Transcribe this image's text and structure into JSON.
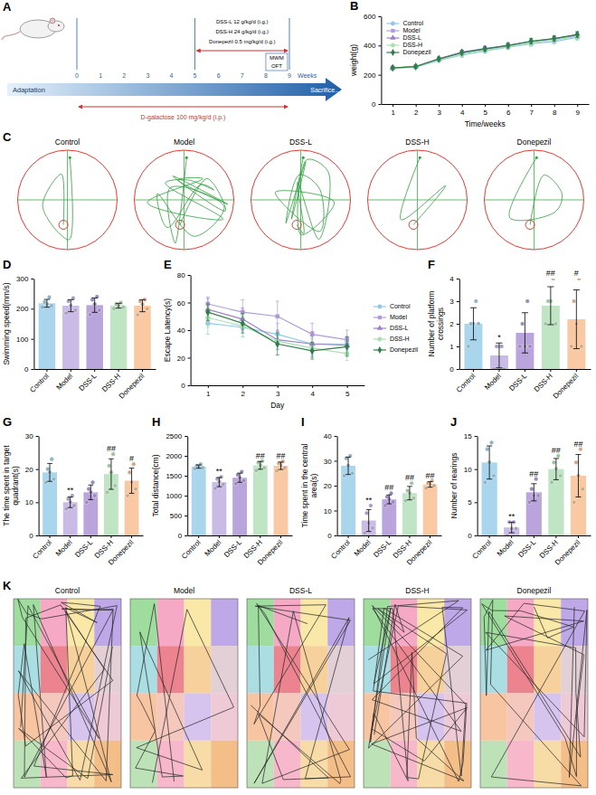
{
  "diagram": {
    "panel": "A",
    "adaptation": "Adaptation",
    "weeks": [
      0,
      1,
      2,
      3,
      4,
      5,
      6,
      7,
      8,
      9
    ],
    "weeks_label": "Weeks",
    "end": "Sacrifice...",
    "treatments": [
      "DSS-L 12 g/kg/d  (i.g.)",
      "DSS-H 24 g/kg/d  (i.g.)",
      "Donepezil 0.5 mg/kg/d  (i.g.)"
    ],
    "tests": [
      "MWM",
      "OFT"
    ],
    "model": "D-galactose 100 mg/kg/d  (i.p.)"
  },
  "chart_data": [
    {
      "panel": "B",
      "type": "line",
      "xlabel": "Time/weeks",
      "ylabel": "weight(g)",
      "x": [
        1,
        2,
        3,
        4,
        5,
        6,
        7,
        8,
        9
      ],
      "xlim": [
        0.5,
        9.5
      ],
      "xticks": [
        1,
        2,
        3,
        4,
        5,
        6,
        7,
        8,
        9
      ],
      "ylim": [
        0,
        600
      ],
      "yticks": [
        0,
        200,
        400,
        600
      ],
      "legend": "upper left",
      "series": [
        {
          "name": "Control",
          "color": "#8fc9e6",
          "marker": "circle",
          "values": [
            245,
            252,
            298,
            335,
            362,
            388,
            412,
            428,
            455
          ],
          "errors": [
            8,
            9,
            12,
            15,
            15,
            16,
            18,
            18,
            20
          ]
        },
        {
          "name": "Model",
          "color": "#b19cd9",
          "marker": "square",
          "values": [
            248,
            255,
            305,
            348,
            375,
            398,
            425,
            443,
            468
          ],
          "errors": [
            8,
            9,
            12,
            15,
            15,
            16,
            18,
            18,
            20
          ]
        },
        {
          "name": "DSS-L",
          "color": "#9b7fc9",
          "marker": "triangle",
          "values": [
            246,
            257,
            310,
            355,
            380,
            402,
            428,
            446,
            472
          ],
          "errors": [
            8,
            9,
            12,
            15,
            15,
            16,
            18,
            18,
            20
          ]
        },
        {
          "name": "DSS-H",
          "color": "#a9dfb3",
          "marker": "circle",
          "values": [
            244,
            254,
            300,
            340,
            368,
            392,
            418,
            438,
            462
          ],
          "errors": [
            8,
            9,
            12,
            15,
            15,
            16,
            18,
            18,
            20
          ]
        },
        {
          "name": "Donepezil",
          "color": "#2f7d4a",
          "marker": "diamond",
          "values": [
            247,
            256,
            308,
            352,
            377,
            400,
            430,
            448,
            475
          ],
          "errors": [
            8,
            9,
            12,
            15,
            15,
            16,
            18,
            18,
            20
          ]
        }
      ]
    },
    {
      "panel": "D",
      "type": "bar",
      "ylabel": "Swimming speed(mm/s)",
      "categories": [
        "Control",
        "Model",
        "DSS-L",
        "DSS-H",
        "Donepezil"
      ],
      "values": [
        218,
        210,
        212,
        210,
        210
      ],
      "errors": [
        13,
        20,
        24,
        8,
        20
      ],
      "points": [
        [
          205,
          210,
          215,
          222,
          238
        ],
        [
          185,
          195,
          210,
          225,
          235
        ],
        [
          180,
          195,
          215,
          230,
          240
        ],
        [
          200,
          205,
          210,
          215,
          220
        ],
        [
          180,
          200,
          215,
          225,
          230
        ]
      ],
      "colors": [
        "#a9d6ec",
        "#c9bbe6",
        "#b9a4dc",
        "#bfe5c4",
        "#f9c9a3"
      ],
      "ylim": [
        0,
        300
      ],
      "yticks": [
        0,
        100,
        200,
        300
      ]
    },
    {
      "panel": "E",
      "type": "line",
      "xlabel": "Day",
      "ylabel": "Escape Latency(s)",
      "x": [
        1,
        2,
        3,
        4,
        5
      ],
      "xlim": [
        0.5,
        5.5
      ],
      "xticks": [
        1,
        2,
        3,
        4,
        5
      ],
      "ylim": [
        0,
        80
      ],
      "yticks": [
        0,
        20,
        40,
        60,
        80
      ],
      "legend": "right",
      "series": [
        {
          "name": "Control",
          "color": "#8fc9e6",
          "marker": "circle",
          "values": [
            45,
            42,
            37,
            30,
            30
          ],
          "errors": [
            8,
            7,
            8,
            7,
            6
          ]
        },
        {
          "name": "Model",
          "color": "#b19cd9",
          "marker": "square",
          "values": [
            59,
            53,
            50,
            37,
            33
          ],
          "errors": [
            5,
            9,
            11,
            8,
            7
          ]
        },
        {
          "name": "DSS-L",
          "color": "#9b7fc9",
          "marker": "triangle",
          "values": [
            55,
            48,
            33,
            30,
            29
          ],
          "errors": [
            8,
            8,
            7,
            9,
            6
          ]
        },
        {
          "name": "DSS-H",
          "color": "#a9dfb3",
          "marker": "circle",
          "values": [
            49,
            43,
            32,
            27,
            23
          ],
          "errors": [
            7,
            8,
            6,
            7,
            5
          ]
        },
        {
          "name": "Donepezil",
          "color": "#2f7d4a",
          "marker": "diamond",
          "values": [
            53,
            45,
            30,
            25,
            28
          ],
          "errors": [
            6,
            7,
            8,
            6,
            7
          ]
        }
      ]
    },
    {
      "panel": "F",
      "type": "bar",
      "ylabel": "Number of platform crossings",
      "categories": [
        "Control",
        "Model",
        "DSS-L",
        "DSS-H",
        "Donepezil"
      ],
      "values": [
        2.0,
        0.6,
        1.6,
        2.8,
        2.2
      ],
      "errors": [
        0.71,
        0.55,
        0.89,
        0.84,
        1.3
      ],
      "points": [
        [
          1,
          2,
          2,
          2,
          3
        ],
        [
          0,
          0,
          1,
          1,
          1
        ],
        [
          1,
          1,
          1,
          2,
          3
        ],
        [
          2,
          2,
          3,
          3,
          4
        ],
        [
          1,
          1,
          2,
          3,
          4
        ]
      ],
      "colors": [
        "#a9d6ec",
        "#c9bbe6",
        "#b9a4dc",
        "#bfe5c4",
        "#f9c9a3"
      ],
      "ylim": [
        0,
        4
      ],
      "yticks": [
        0,
        1,
        2,
        3,
        4
      ],
      "significance": [
        null,
        "*",
        null,
        "##",
        "#"
      ]
    },
    {
      "panel": "G",
      "type": "bar",
      "ylabel": "The time spent in target quadrant(s)",
      "categories": [
        "Control",
        "Model",
        "DSS-L",
        "DSS-H",
        "Donepezil"
      ],
      "values": [
        19,
        10,
        13,
        18.5,
        16.5
      ],
      "errors": [
        2.7,
        1.6,
        2.2,
        4.6,
        3.8
      ],
      "points": [
        [
          16,
          17,
          19,
          20,
          23
        ],
        [
          8,
          9,
          10,
          11,
          12
        ],
        [
          10,
          12,
          13,
          14,
          16
        ],
        [
          13,
          15,
          19,
          21,
          24.5
        ],
        [
          12,
          14,
          16,
          19,
          21.5
        ]
      ],
      "colors": [
        "#a9d6ec",
        "#c9bbe6",
        "#b9a4dc",
        "#bfe5c4",
        "#f9c9a3"
      ],
      "ylim": [
        0,
        30
      ],
      "yticks": [
        0,
        10,
        20,
        30
      ],
      "significance": [
        null,
        "**",
        null,
        "##",
        "#"
      ]
    },
    {
      "panel": "H",
      "type": "bar",
      "ylabel": "Total distance(cm)",
      "categories": [
        "Control",
        "Model",
        "DSS-L",
        "DSS-H",
        "Donepezil"
      ],
      "values": [
        1730,
        1340,
        1450,
        1760,
        1750
      ],
      "errors": [
        42,
        115,
        115,
        98,
        93
      ],
      "points": [
        [
          1680,
          1700,
          1730,
          1750,
          1790
        ],
        [
          1180,
          1280,
          1350,
          1420,
          1470
        ],
        [
          1300,
          1380,
          1450,
          1520,
          1600
        ],
        [
          1630,
          1700,
          1770,
          1830,
          1870
        ],
        [
          1620,
          1700,
          1760,
          1810,
          1860
        ]
      ],
      "colors": [
        "#a9d6ec",
        "#c9bbe6",
        "#b9a4dc",
        "#bfe5c4",
        "#f9c9a3"
      ],
      "ylim": [
        0,
        2500
      ],
      "yticks": [
        0,
        500,
        1000,
        1500,
        2000,
        2500
      ],
      "significance": [
        null,
        "**",
        null,
        "##",
        "##"
      ]
    },
    {
      "panel": "I",
      "type": "bar",
      "ylabel": "Time spent in the central area(s)",
      "categories": [
        "Control",
        "Model",
        "DSS-L",
        "DSS-H",
        "Donepezil"
      ],
      "values": [
        28,
        6,
        14.5,
        17,
        20.5
      ],
      "errors": [
        3.5,
        4.4,
        1.8,
        2.7,
        1.1
      ],
      "points": [
        [
          24,
          25,
          28,
          31,
          32
        ],
        [
          1,
          3,
          5,
          9,
          12
        ],
        [
          12,
          13.5,
          14.5,
          15.5,
          17
        ],
        [
          14,
          15,
          17,
          18,
          21
        ],
        [
          19,
          20,
          20.5,
          21,
          22
        ]
      ],
      "colors": [
        "#a9d6ec",
        "#c9bbe6",
        "#b9a4dc",
        "#bfe5c4",
        "#f9c9a3"
      ],
      "ylim": [
        0,
        40
      ],
      "yticks": [
        0,
        10,
        20,
        30,
        40
      ],
      "significance": [
        null,
        "**",
        "##",
        "##",
        "##"
      ]
    },
    {
      "panel": "J",
      "type": "bar",
      "ylabel": "Number of rearings",
      "categories": [
        "Control",
        "Model",
        "DSS-L",
        "DSS-H",
        "Donepezil"
      ],
      "values": [
        11,
        1.2,
        6.5,
        10,
        9
      ],
      "errors": [
        2.5,
        0.8,
        1.3,
        1.6,
        3.2
      ],
      "points": [
        [
          8,
          9,
          11,
          13,
          14
        ],
        [
          0,
          1,
          1,
          2,
          2
        ],
        [
          5,
          6,
          6,
          7,
          8.5
        ],
        [
          8,
          9,
          10,
          11,
          12
        ],
        [
          5,
          7,
          9,
          11,
          13
        ]
      ],
      "colors": [
        "#a9d6ec",
        "#c9bbe6",
        "#b9a4dc",
        "#bfe5c4",
        "#f9c9a3"
      ],
      "ylim": [
        0,
        15
      ],
      "yticks": [
        0,
        5,
        10,
        15
      ],
      "significance": [
        null,
        "**",
        "##",
        "##",
        "##"
      ]
    }
  ],
  "track_panels": [
    {
      "panel": "C",
      "type": "pool",
      "groups": [
        "Control",
        "Model",
        "DSS-L",
        "DSS-H",
        "Donepezil"
      ]
    },
    {
      "panel": "K",
      "type": "arena",
      "groups": [
        "Control",
        "Model",
        "DSS-L",
        "DSS-H",
        "Donepezil"
      ]
    }
  ]
}
